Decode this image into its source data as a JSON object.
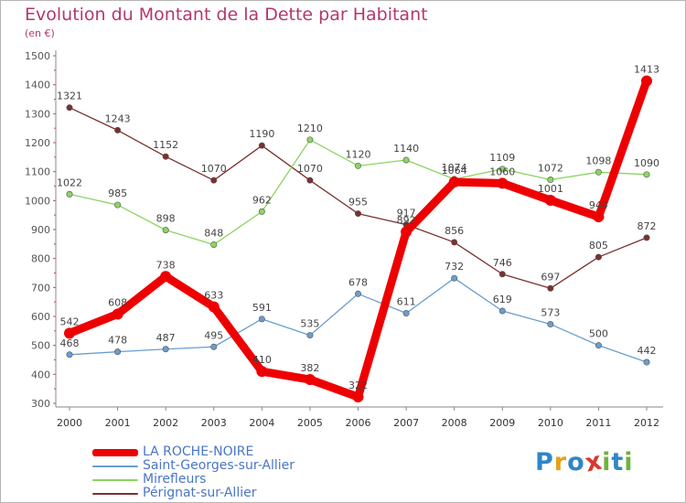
{
  "header": {
    "title": "Evolution du Montant de la Dette par Habitant",
    "unit": "(en €)"
  },
  "colors": {
    "title": "#b4376e",
    "axis": "#888888",
    "grid": "#cccccc",
    "plot_background": "#ffffff"
  },
  "chart_data": {
    "type": "line",
    "x": [
      "2000",
      "2001",
      "2002",
      "2003",
      "2004",
      "2005",
      "2006",
      "2007",
      "2008",
      "2009",
      "2010",
      "2011",
      "2012"
    ],
    "ylim": [
      300,
      1500
    ],
    "yticks": [
      300,
      400,
      500,
      600,
      700,
      800,
      900,
      1000,
      1100,
      1200,
      1300,
      1400,
      1500
    ],
    "grid": false,
    "legend_position": "bottom-left",
    "series": [
      {
        "name": "Pérignat-sur-Allier",
        "color": "#7a3030",
        "values": [
          1321,
          1243,
          1152,
          1070,
          1190,
          1070,
          955,
          917,
          856,
          746,
          697,
          805,
          872
        ],
        "labels": [
          "1321",
          "1243",
          "1152",
          "1070",
          "1190",
          "1070",
          "955",
          "917",
          "856",
          "746",
          "697",
          "805",
          "872"
        ]
      },
      {
        "name": "Mirefleurs",
        "color": "#8cd463",
        "values": [
          1022,
          985,
          898,
          848,
          962,
          1210,
          1120,
          1140,
          1074,
          1109,
          1072,
          1098,
          1090
        ],
        "labels": [
          "1022",
          "985",
          "898",
          "848",
          "962",
          "1210",
          "1120",
          "1140",
          "1074",
          "1109",
          "1072",
          "1098",
          "1090"
        ]
      },
      {
        "name": "Saint-Georges-sur-Allier",
        "color": "#6a9ecf",
        "values": [
          468,
          478,
          487,
          495,
          591,
          535,
          678,
          611,
          732,
          619,
          573,
          500,
          442
        ],
        "labels": [
          "468",
          "478",
          "487",
          "495",
          "591",
          "535",
          "678",
          "611",
          "732",
          "619",
          "573",
          "500",
          "442"
        ]
      },
      {
        "name": "LA ROCHE-NOIRE",
        "color": "#ee0000",
        "values": [
          542,
          608,
          738,
          633,
          410,
          382,
          322,
          892,
          1064,
          1060,
          1001,
          944,
          1413
        ],
        "labels": [
          "542",
          "608",
          "738",
          "633",
          "410",
          "382",
          "322",
          "892",
          "1064",
          "1060",
          "1001",
          "944",
          "1413"
        ]
      }
    ]
  },
  "legend": {
    "items": [
      {
        "label": "LA ROCHE-NOIRE",
        "color": "#ee0000",
        "text_color": "#4a76c4"
      },
      {
        "label": "Saint-Georges-sur-Allier",
        "color": "#6a9ecf",
        "text_color": "#4a76c4"
      },
      {
        "label": "Mirefleurs",
        "color": "#8cd463",
        "text_color": "#4a76c4"
      },
      {
        "label": "Pérignat-sur-Allier",
        "color": "#7a3030",
        "text_color": "#4a76c4"
      }
    ]
  },
  "logo": {
    "letters": [
      {
        "char": "P",
        "color": "#2f86c8"
      },
      {
        "char": "r",
        "color": "#e2a21a"
      },
      {
        "char": "o",
        "color": "#2f86c8"
      },
      {
        "char": "x",
        "color": "#d93a2f"
      },
      {
        "char": "i",
        "color": "#6cb33f"
      },
      {
        "char": "t",
        "color": "#2f86c8"
      },
      {
        "char": "i",
        "color": "#6cb33f"
      }
    ]
  }
}
